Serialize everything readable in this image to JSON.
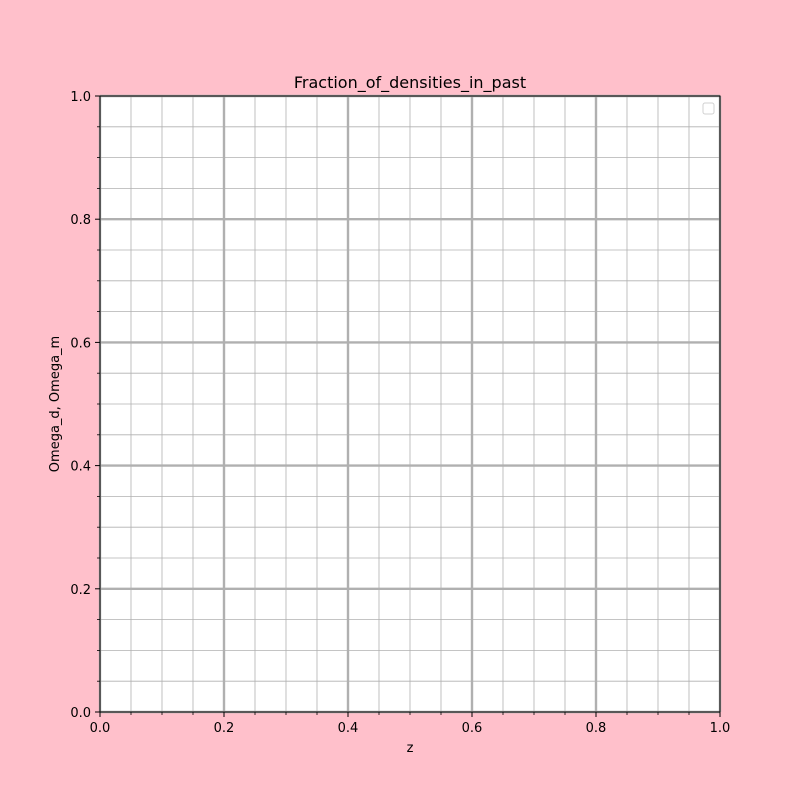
{
  "chart_data": {
    "type": "line",
    "title": "Fraction_of_densities_in_past",
    "xlabel": "z",
    "ylabel": "Omega_d, Omega_m",
    "xlim": [
      0.0,
      1.0
    ],
    "ylim": [
      0.0,
      1.0
    ],
    "x_ticks": [
      0.0,
      0.2,
      0.4,
      0.6,
      0.8,
      1.0
    ],
    "y_ticks": [
      0.0,
      0.2,
      0.4,
      0.6,
      0.8,
      1.0
    ],
    "x_tick_labels": [
      "0.0",
      "0.2",
      "0.4",
      "0.6",
      "0.8",
      "1.0"
    ],
    "y_tick_labels": [
      "0.0",
      "0.2",
      "0.4",
      "0.6",
      "0.8",
      "1.0"
    ],
    "x_minor_step": 0.05,
    "y_minor_step": 0.05,
    "grid": "major and minor",
    "legend": {
      "placement": "top-right",
      "entries": []
    },
    "series": [],
    "colors": {
      "background": "#ffc0cb",
      "plot_area": "#ffffff",
      "grid_major": "#b0b0b0",
      "grid_minor": "#b0b0b0",
      "axes": "#000000"
    }
  }
}
